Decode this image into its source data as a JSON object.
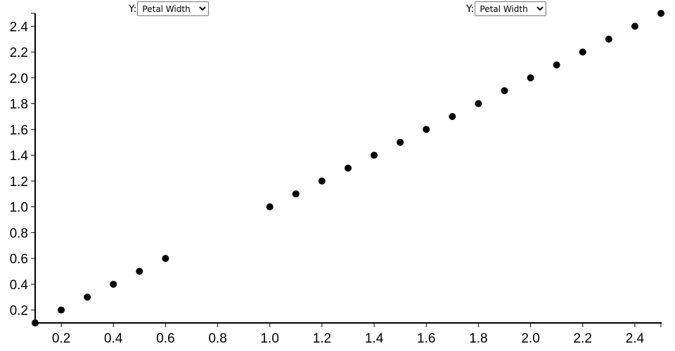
{
  "controls": [
    {
      "label": "Y:",
      "selected": "Petal Width"
    },
    {
      "label": "Y:",
      "selected": "Petal Width"
    }
  ],
  "chart_data": {
    "type": "scatter",
    "title": "",
    "xlabel": "",
    "ylabel": "",
    "xlim": [
      0.1,
      2.5
    ],
    "ylim": [
      0.1,
      2.5
    ],
    "x_ticks": [
      "0.2",
      "0.4",
      "0.6",
      "0.8",
      "1.0",
      "1.2",
      "1.4",
      "1.6",
      "1.8",
      "2.0",
      "2.2",
      "2.4"
    ],
    "y_ticks": [
      "0.2",
      "0.4",
      "0.6",
      "0.8",
      "1.0",
      "1.2",
      "1.4",
      "1.6",
      "1.8",
      "2.0",
      "2.2",
      "2.4"
    ],
    "grid": false,
    "point_color": "#000000",
    "points": [
      [
        0.1,
        0.1
      ],
      [
        0.2,
        0.2
      ],
      [
        0.3,
        0.3
      ],
      [
        0.4,
        0.4
      ],
      [
        0.5,
        0.5
      ],
      [
        0.6,
        0.6
      ],
      [
        1.0,
        1.0
      ],
      [
        1.1,
        1.1
      ],
      [
        1.2,
        1.2
      ],
      [
        1.3,
        1.3
      ],
      [
        1.4,
        1.4
      ],
      [
        1.5,
        1.5
      ],
      [
        1.6,
        1.6
      ],
      [
        1.7,
        1.7
      ],
      [
        1.8,
        1.8
      ],
      [
        1.9,
        1.9
      ],
      [
        2.0,
        2.0
      ],
      [
        2.1,
        2.1
      ],
      [
        2.2,
        2.2
      ],
      [
        2.3,
        2.3
      ],
      [
        2.4,
        2.4
      ],
      [
        2.5,
        2.5
      ]
    ]
  }
}
